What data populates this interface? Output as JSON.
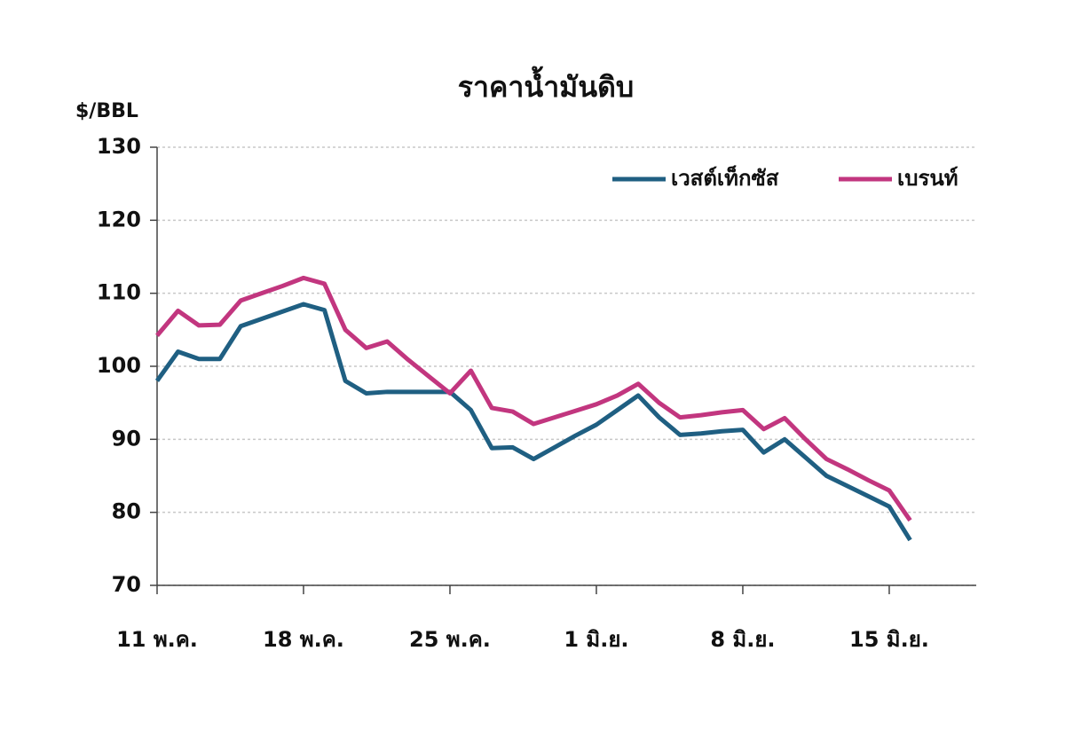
{
  "chart_data": {
    "type": "line",
    "title": "ราคาน้ำมันดิบ",
    "y_label": "$/BBL",
    "categories": [
      "11 พ.ค.",
      null,
      null,
      null,
      null,
      null,
      null,
      "18 พ.ค.",
      null,
      null,
      null,
      null,
      null,
      null,
      "25 พ.ค.",
      null,
      null,
      null,
      null,
      null,
      null,
      "1 มิ.ย.",
      null,
      null,
      null,
      null,
      null,
      null,
      "8 มิ.ย.",
      null,
      null,
      null,
      null,
      null,
      null,
      "15 มิ.ย.",
      null
    ],
    "series": [
      {
        "name": "เวสต์เท็กซัส",
        "color": "#1f5f82",
        "values": [
          98,
          102,
          101,
          101,
          105.5,
          106.5,
          107.5,
          108.5,
          107.7,
          98,
          96.3,
          96.5,
          96.5,
          96.5,
          96.5,
          94,
          88.8,
          88.9,
          87.3,
          88.9,
          90.5,
          92,
          94,
          96,
          93,
          90.6,
          90.8,
          91.1,
          91.3,
          88.2,
          90,
          87.5,
          85,
          83.6,
          82.2,
          80.8,
          76.2
        ]
      },
      {
        "name": "เบรนท์",
        "color": "#c2367f",
        "values": [
          104.2,
          107.6,
          105.6,
          105.7,
          109,
          110,
          111,
          112.1,
          111.3,
          105,
          102.5,
          103.4,
          100.9,
          98.6,
          96.3,
          99.4,
          94.3,
          93.8,
          92.1,
          93,
          93.9,
          94.8,
          96,
          97.6,
          95,
          93,
          93.3,
          93.7,
          94,
          91.4,
          92.9,
          90,
          87.3,
          85.9,
          84.4,
          83,
          78.9
        ]
      }
    ],
    "ylim": [
      70,
      130
    ],
    "yticks": [
      70,
      80,
      90,
      100,
      110,
      120,
      130
    ],
    "grid": true,
    "legend": "upper right"
  }
}
